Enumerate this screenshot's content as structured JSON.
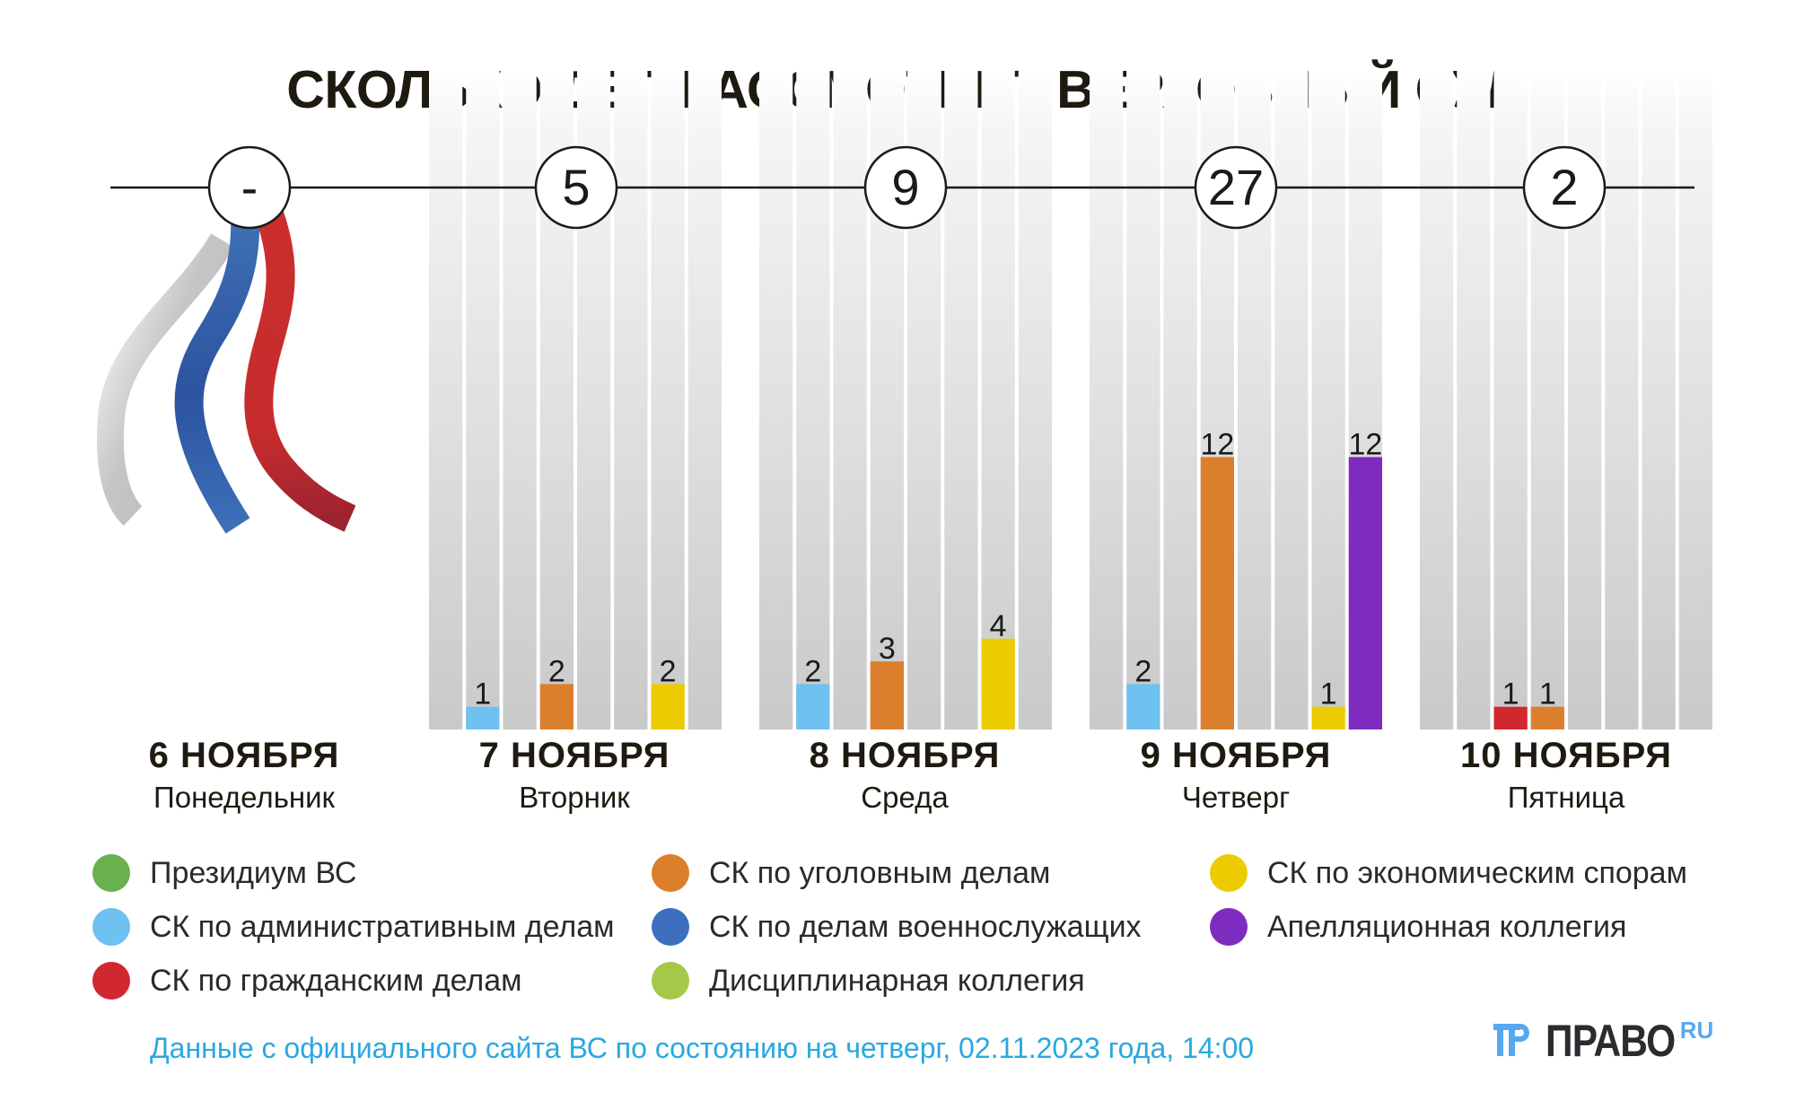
{
  "chart_data": {
    "type": "bar",
    "title": "СКОЛЬКО ДЕЛ РАССМОТРИТ ВЕРХОВНЫЙ СУД",
    "categories": [
      "Президиум ВС",
      "СК по административным делам",
      "СК по гражданским делам",
      "СК по уголовным делам",
      "СК по делам военнослужащих",
      "Дисциплинарная коллегия",
      "СК по экономическим спорам",
      "Апелляционная коллегия"
    ],
    "colors": [
      "#6ab04c",
      "#6ec1f0",
      "#d0282e",
      "#dc7f2c",
      "#3e6fbf",
      "#a5c84a",
      "#eccb00",
      "#7e2cbf"
    ],
    "days": [
      {
        "date": "6 НОЯБРЯ",
        "weekday": "Понедельник",
        "total": "-",
        "values": [
          0,
          0,
          0,
          0,
          0,
          0,
          0,
          0
        ],
        "holiday": true
      },
      {
        "date": "7 НОЯБРЯ",
        "weekday": "Вторник",
        "total": "5",
        "values": [
          0,
          1,
          0,
          2,
          0,
          0,
          2,
          0
        ]
      },
      {
        "date": "8 НОЯБРЯ",
        "weekday": "Среда",
        "total": "9",
        "values": [
          0,
          2,
          0,
          3,
          0,
          0,
          4,
          0
        ]
      },
      {
        "date": "9 НОЯБРЯ",
        "weekday": "Четверг",
        "total": "27",
        "values": [
          0,
          2,
          0,
          12,
          0,
          0,
          1,
          12
        ]
      },
      {
        "date": "10 НОЯБРЯ",
        "weekday": "Пятница",
        "total": "2",
        "values": [
          0,
          0,
          1,
          1,
          0,
          0,
          0,
          0
        ]
      }
    ],
    "ylim": [
      0,
      12
    ],
    "xlabel": "",
    "ylabel": "",
    "grid": false,
    "legend_position": "bottom"
  },
  "footer": "Данные с официального сайта ВС по состоянию на четверг, 02.11.2023 года, 14:00",
  "logo": {
    "text": "ПРАВО",
    "suffix": "RU"
  }
}
